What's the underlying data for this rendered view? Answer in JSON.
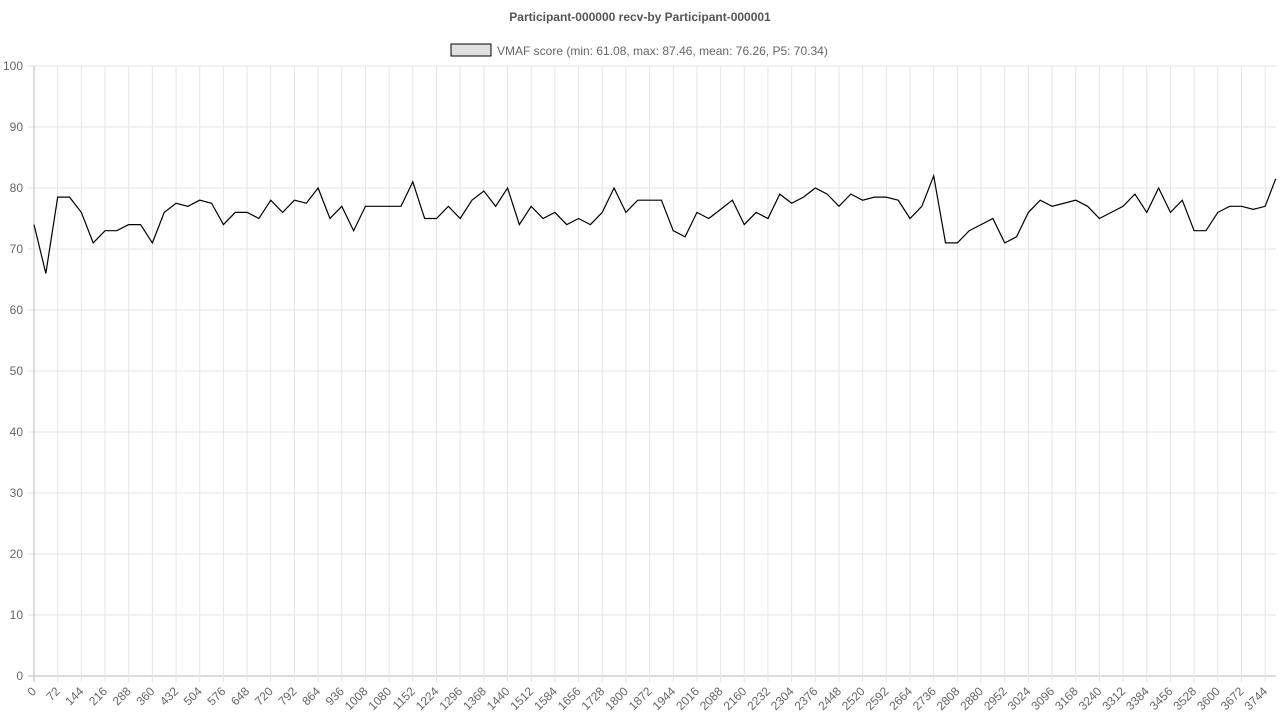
{
  "chart_data": {
    "type": "line",
    "title": "Participant-000000 recv-by Participant-000001",
    "x": [
      0,
      36,
      72,
      108,
      144,
      180,
      216,
      252,
      288,
      324,
      360,
      396,
      432,
      468,
      504,
      540,
      576,
      612,
      648,
      684,
      720,
      756,
      792,
      828,
      864,
      900,
      936,
      972,
      1008,
      1044,
      1080,
      1116,
      1152,
      1188,
      1224,
      1260,
      1296,
      1332,
      1368,
      1404,
      1440,
      1476,
      1512,
      1548,
      1584,
      1620,
      1656,
      1692,
      1728,
      1764,
      1800,
      1836,
      1872,
      1908,
      1944,
      1980,
      2016,
      2052,
      2088,
      2124,
      2160,
      2196,
      2232,
      2268,
      2304,
      2340,
      2376,
      2412,
      2448,
      2484,
      2520,
      2556,
      2592,
      2628,
      2664,
      2700,
      2736,
      2772,
      2808,
      2844,
      2880,
      2916,
      2952,
      2988,
      3024,
      3060,
      3096,
      3132,
      3168,
      3204,
      3240,
      3276,
      3312,
      3348,
      3384,
      3420,
      3456,
      3492,
      3528,
      3564,
      3600,
      3636,
      3672,
      3708,
      3744,
      3776
    ],
    "series": [
      {
        "name": "VMAF score (min: 61.08, max: 87.46, mean: 76.26, P5: 70.34)",
        "color": "#000000",
        "fill": "#e0e0e0",
        "values": [
          74,
          66,
          78.5,
          78.5,
          76,
          71,
          73,
          73,
          74,
          74,
          71,
          76,
          77.5,
          77,
          78,
          77.5,
          74,
          76,
          76,
          75,
          78,
          76,
          78,
          77.5,
          80,
          75,
          77,
          73,
          77,
          77,
          77,
          77,
          81,
          75,
          75,
          77,
          75,
          78,
          79.5,
          77,
          80,
          74,
          77,
          75,
          76,
          74,
          75,
          74,
          76,
          80,
          76,
          78,
          78,
          78,
          73,
          72,
          76,
          75,
          76.5,
          78,
          74,
          76,
          75,
          79,
          77.5,
          78.5,
          80,
          79,
          77,
          79,
          78,
          78.5,
          78.5,
          78,
          75,
          77,
          82,
          71,
          71,
          73,
          74,
          75,
          71,
          72,
          76,
          78,
          77,
          77.5,
          78,
          77,
          75,
          76,
          77,
          79,
          76,
          80,
          76,
          78,
          73,
          73,
          76,
          77,
          77,
          76.5,
          77,
          81.5
        ]
      }
    ],
    "xlim": [
      0,
      3777
    ],
    "xticks": [
      0,
      72,
      144,
      216,
      288,
      360,
      432,
      504,
      576,
      648,
      720,
      792,
      864,
      936,
      1008,
      1080,
      1152,
      1224,
      1296,
      1368,
      1440,
      1512,
      1584,
      1656,
      1728,
      1800,
      1872,
      1944,
      2016,
      2088,
      2160,
      2232,
      2304,
      2376,
      2448,
      2520,
      2592,
      2664,
      2736,
      2808,
      2880,
      2952,
      3024,
      3096,
      3168,
      3240,
      3312,
      3384,
      3456,
      3528,
      3600,
      3672,
      3744
    ],
    "ylim": [
      0,
      100
    ],
    "yticks": [
      0,
      10,
      20,
      30,
      40,
      50,
      60,
      70,
      80,
      90,
      100
    ],
    "grid": true,
    "legend": "top"
  }
}
